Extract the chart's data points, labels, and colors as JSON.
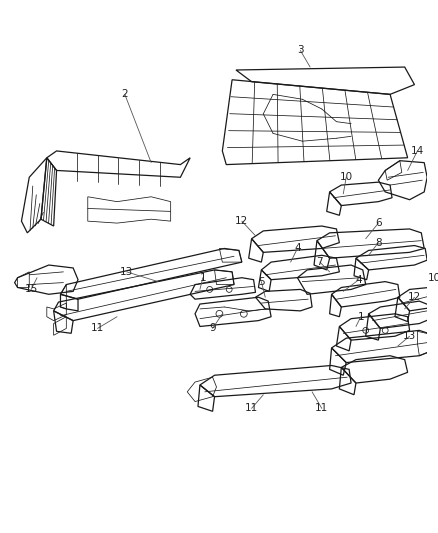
{
  "bg_color": "#ffffff",
  "line_color": "#1a1a1a",
  "label_color": "#222222",
  "figsize": [
    4.38,
    5.33
  ],
  "dpi": 100,
  "lw_part": 0.9,
  "lw_detail": 0.55,
  "lw_leader": 0.6,
  "label_fs": 7.5
}
